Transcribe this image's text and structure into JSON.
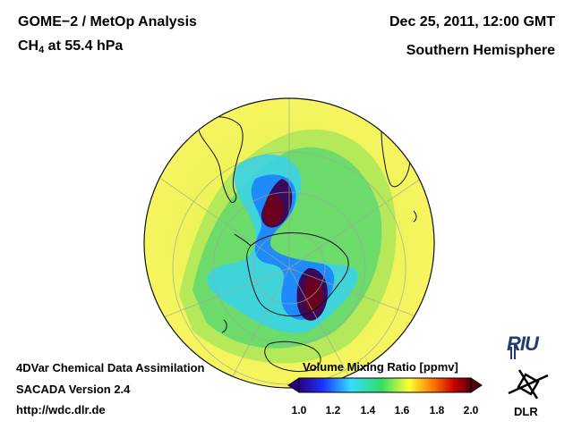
{
  "header": {
    "title_left": "GOME−2 / MetOp Analysis",
    "species": "CH",
    "species_sub": "4",
    "level": " at 55.4 hPa",
    "title_right": "Dec 25, 2011, 12:00 GMT",
    "subtitle_right": "Southern Hemisphere"
  },
  "footer": {
    "line1": "4DVar Chemical Data Assimilation",
    "line2": "SACADA Version 2.4",
    "line3": "http://wdc.dlr.de"
  },
  "colorbar": {
    "title": "Volume Mixing Ratio [ppmv]",
    "ticks": [
      "1.0",
      "1.2",
      "1.4",
      "1.6",
      "1.8",
      "2.0"
    ],
    "range": [
      1.0,
      2.0
    ],
    "colors": [
      "#2a0080",
      "#1a33ff",
      "#33ddff",
      "#33dd66",
      "#ffff33",
      "#ff7700",
      "#cc0000",
      "#550011"
    ]
  },
  "logos": {
    "riu": "RIU",
    "dlr": "DLR"
  },
  "map": {
    "projection": "orthographic-south-polar",
    "background_color": "#f2f45a"
  }
}
